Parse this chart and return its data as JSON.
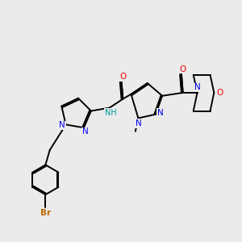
{
  "bg_color": "#ebebeb",
  "atom_colors": {
    "N": "#0000ee",
    "O": "#ee0000",
    "Br": "#bb6600",
    "NH_color": "#009999"
  },
  "figsize": [
    3.0,
    3.0
  ],
  "dpi": 100,
  "xlim": [
    0,
    10
  ],
  "ylim": [
    0,
    10
  ]
}
